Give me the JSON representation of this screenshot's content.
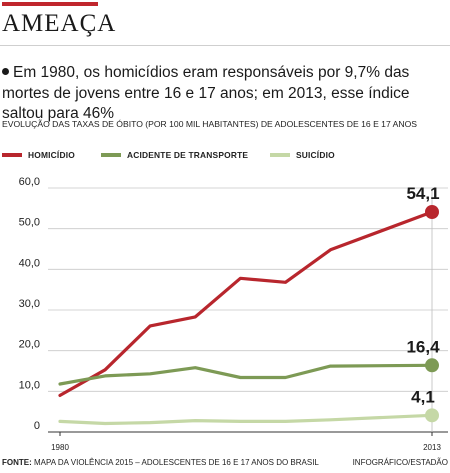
{
  "header": {
    "title": "AMEAÇA",
    "lead": "Em 1980, os homicídios eram responsáveis por 9,7% das mortes de jovens entre 16 e 17 anos; em 2013, esse índice saltou para 46%"
  },
  "colors": {
    "accent": "#c0262d",
    "homicidio": "#b8262d",
    "acidente": "#7d9a55",
    "suicidio": "#c5d8a6"
  },
  "chart_data": {
    "type": "line",
    "title": "",
    "subtitle": "EVOLUÇÃO DAS TAXAS DE ÓBITO (POR 100 MIL HABITANTES) DE ADOLESCENTES DE 16 E 17 ANOS",
    "xlabel": "",
    "ylabel": "",
    "x": [
      1980,
      1984,
      1988,
      1992,
      1996,
      2000,
      2004,
      2008,
      2013
    ],
    "x_tick_labels": [
      "1980",
      "2013"
    ],
    "ylim": [
      0,
      60
    ],
    "y_ticks": [
      "0",
      "10,0",
      "20,0",
      "30,0",
      "40,0",
      "50,0",
      "60,0"
    ],
    "grid": true,
    "legend_position": "top",
    "series": [
      {
        "name": "HOMICÍDIO",
        "color": "#b8262d",
        "values": [
          9.0,
          15.3,
          26.1,
          28.3,
          37.8,
          36.8,
          44.8,
          null,
          54.1
        ],
        "end_label": "54,1"
      },
      {
        "name": "ACIDENTE DE TRANSPORTE",
        "color": "#7d9a55",
        "values": [
          11.8,
          13.8,
          14.3,
          15.8,
          13.4,
          13.4,
          16.2,
          null,
          16.4
        ],
        "end_label": "16,4"
      },
      {
        "name": "SUICÍDIO",
        "color": "#c5d8a6",
        "values": [
          2.6,
          2.1,
          2.3,
          2.8,
          2.6,
          2.6,
          3.0,
          null,
          4.1
        ],
        "end_label": "4,1"
      }
    ]
  },
  "footer": {
    "source_label": "FONTE:",
    "source_text": "MAPA DA VIOLÊNCIA 2015 – ADOLESCENTES DE 16 E 17 ANOS DO BRASIL",
    "credit": "INFOGRÁFICO/ESTADÃO"
  }
}
